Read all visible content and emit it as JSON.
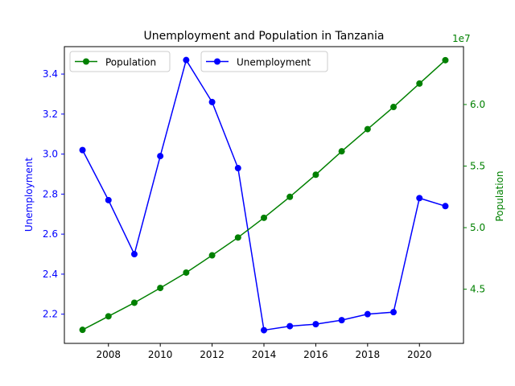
{
  "chart_data": {
    "type": "line",
    "title": "Unemployment and Population in Tanzania",
    "x": [
      2007,
      2008,
      2009,
      2010,
      2011,
      2012,
      2013,
      2014,
      2015,
      2016,
      2017,
      2018,
      2019,
      2020,
      2021
    ],
    "xticks": [
      "2008",
      "2010",
      "2012",
      "2014",
      "2016",
      "2018",
      "2020"
    ],
    "xlim": [
      2006.3,
      2021.7
    ],
    "series": [
      {
        "name": "Unemployment",
        "axis": "left",
        "color": "#0000ff",
        "values": [
          3.02,
          2.77,
          2.5,
          2.99,
          3.47,
          3.26,
          2.93,
          2.12,
          2.14,
          2.15,
          2.17,
          2.2,
          2.21,
          2.78,
          2.74
        ]
      },
      {
        "name": "Population",
        "axis": "right",
        "color": "#008000",
        "values": [
          41700000,
          42800000,
          43900000,
          45100000,
          46350000,
          47750000,
          49200000,
          50800000,
          52500000,
          54300000,
          56200000,
          58000000,
          59800000,
          61700000,
          63600000
        ]
      }
    ],
    "left_axis": {
      "label": "Unemployment",
      "color": "#0000ff",
      "ylim": [
        2.054,
        3.537
      ],
      "ticks": [
        "2.2",
        "2.4",
        "2.6",
        "2.8",
        "3.0",
        "3.2",
        "3.4"
      ]
    },
    "right_axis": {
      "label": "Population",
      "color": "#008000",
      "ylim": [
        40600000,
        64700000
      ],
      "ticks": [
        "4.5",
        "5.0",
        "5.5",
        "6.0"
      ],
      "offset_text": "1e7"
    },
    "legends": [
      {
        "placement": "upper-left",
        "entries": [
          "Population"
        ]
      },
      {
        "placement": "upper-center",
        "entries": [
          "Unemployment"
        ]
      }
    ],
    "grid": false
  }
}
